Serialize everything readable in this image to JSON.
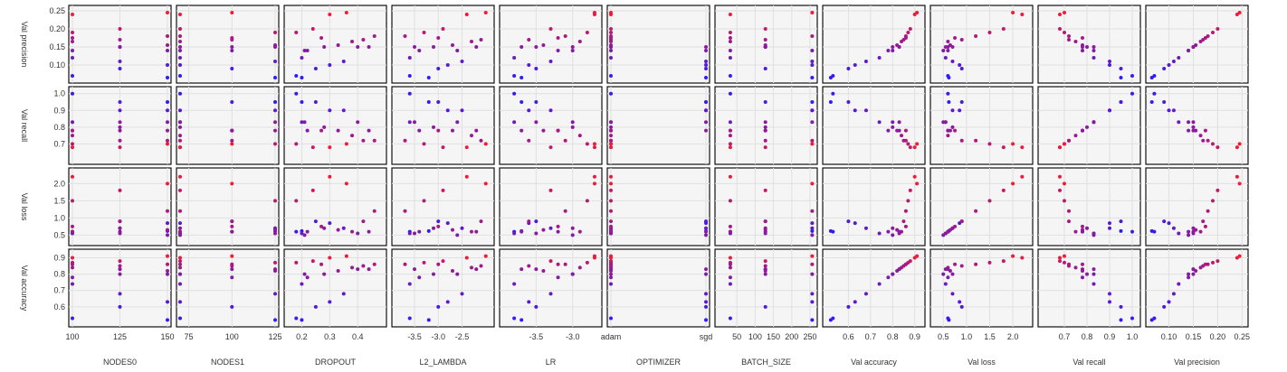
{
  "chart_data": {
    "type": "scatter",
    "title": "",
    "description_type": "scatter-matrix",
    "grid": true,
    "background": "#f5f5f5",
    "point_colors": {
      "low": "#2a1aff",
      "high": "#ff1a2a"
    },
    "columns": [
      {
        "key": "nodes0",
        "label": "NODES0",
        "ticks": [
          "100",
          "125",
          "150"
        ],
        "range": [
          100,
          150
        ]
      },
      {
        "key": "nodes1",
        "label": "NODES1",
        "ticks": [
          "75",
          "100",
          "125"
        ],
        "range": [
          70,
          125
        ]
      },
      {
        "key": "dropout",
        "label": "DROPOUT",
        "ticks": [
          "0.2",
          "0.3",
          "0.4"
        ],
        "range": [
          0.15,
          0.49
        ]
      },
      {
        "key": "l2",
        "label": "L2_LAMBDA",
        "ticks": [
          "-3.5",
          "-3.0",
          "-2.5"
        ],
        "range": [
          -3.9,
          -1.9
        ]
      },
      {
        "key": "lr",
        "label": "LR",
        "ticks": [
          "-3.5",
          "-3.0"
        ],
        "range": [
          -3.95,
          -2.65
        ]
      },
      {
        "key": "optimizer",
        "label": "OPTIMIZER",
        "ticks": [
          "adam",
          "sgd"
        ],
        "range": [
          0,
          1
        ]
      },
      {
        "key": "batch",
        "label": "BATCH_SIZE",
        "ticks": [
          "50",
          "100",
          "150",
          "200",
          "250"
        ],
        "range": [
          0,
          260
        ]
      },
      {
        "key": "acc",
        "label": "Val accuracy",
        "ticks": [
          "0.6",
          "0.7",
          "0.8",
          "0.9"
        ],
        "range": [
          0.5,
          0.93
        ]
      },
      {
        "key": "loss",
        "label": "Val loss",
        "ticks": [
          "0.5",
          "1.0",
          "1.5",
          "2.0"
        ],
        "range": [
          0.3,
          2.35
        ]
      },
      {
        "key": "recall",
        "label": "Val recall",
        "ticks": [
          "0.7",
          "0.8",
          "0.9",
          "1.0"
        ],
        "range": [
          0.6,
          1.02
        ]
      },
      {
        "key": "precision",
        "label": "Val precision",
        "ticks": [
          "0.10",
          "0.15",
          "0.20",
          "0.25"
        ],
        "range": [
          0.06,
          0.255
        ]
      }
    ],
    "rows": [
      {
        "key": "precision",
        "label": "Val precision",
        "ticks": [
          "0.10",
          "0.15",
          "0.20",
          "0.25"
        ],
        "range": [
          0.06,
          0.255
        ]
      },
      {
        "key": "recall",
        "label": "Val recall",
        "ticks": [
          "0.7",
          "0.8",
          "0.9",
          "1.0"
        ],
        "range": [
          0.6,
          1.02
        ]
      },
      {
        "key": "loss",
        "label": "Val loss",
        "ticks": [
          "0.5",
          "1.0",
          "1.5",
          "2.0"
        ],
        "range": [
          0.3,
          2.35
        ]
      },
      {
        "key": "acc",
        "label": "Val accuracy",
        "ticks": [
          "0.6",
          "0.7",
          "0.8",
          "0.9"
        ],
        "range": [
          0.5,
          0.93
        ]
      }
    ],
    "points": [
      {
        "nodes0": 100,
        "nodes1": 70,
        "dropout": 0.18,
        "l2": -3.6,
        "lr": -3.8,
        "optimizer": 0,
        "batch": 32,
        "acc": 0.53,
        "loss": 0.6,
        "recall": 1.0,
        "precision": 0.07
      },
      {
        "nodes0": 150,
        "nodes1": 125,
        "dropout": 0.2,
        "l2": -3.2,
        "lr": -3.7,
        "optimizer": 1,
        "batch": 256,
        "acc": 0.52,
        "loss": 0.62,
        "recall": 0.95,
        "precision": 0.065
      },
      {
        "nodes0": 125,
        "nodes1": 100,
        "dropout": 0.25,
        "l2": -3.0,
        "lr": -3.5,
        "optimizer": 1,
        "batch": 128,
        "acc": 0.6,
        "loss": 0.9,
        "recall": 0.95,
        "precision": 0.09
      },
      {
        "nodes0": 150,
        "nodes1": 70,
        "dropout": 0.3,
        "l2": -2.8,
        "lr": -3.6,
        "optimizer": 1,
        "batch": 256,
        "acc": 0.63,
        "loss": 0.85,
        "recall": 0.9,
        "precision": 0.1
      },
      {
        "nodes0": 125,
        "nodes1": 125,
        "dropout": 0.35,
        "l2": -2.5,
        "lr": -3.3,
        "optimizer": 1,
        "batch": 256,
        "acc": 0.68,
        "loss": 0.7,
        "recall": 0.9,
        "precision": 0.11
      },
      {
        "nodes0": 100,
        "nodes1": 70,
        "dropout": 0.2,
        "l2": -3.6,
        "lr": -3.8,
        "optimizer": 0,
        "batch": 32,
        "acc": 0.74,
        "loss": 0.55,
        "recall": 0.83,
        "precision": 0.12
      },
      {
        "nodes0": 100,
        "nodes1": 100,
        "dropout": 0.22,
        "l2": -3.4,
        "lr": -3.2,
        "optimizer": 0,
        "batch": 32,
        "acc": 0.78,
        "loss": 0.6,
        "recall": 0.78,
        "precision": 0.14
      },
      {
        "nodes0": 125,
        "nodes1": 70,
        "dropout": 0.28,
        "l2": -3.1,
        "lr": -3.0,
        "optimizer": 0,
        "batch": 128,
        "acc": 0.8,
        "loss": 0.7,
        "recall": 0.8,
        "precision": 0.15
      },
      {
        "nodes0": 150,
        "nodes1": 125,
        "dropout": 0.33,
        "l2": -2.7,
        "lr": -3.4,
        "optimizer": 0,
        "batch": 128,
        "acc": 0.82,
        "loss": 0.65,
        "recall": 0.78,
        "precision": 0.155
      },
      {
        "nodes0": 100,
        "nodes1": 70,
        "dropout": 0.38,
        "l2": -2.3,
        "lr": -2.9,
        "optimizer": 0,
        "batch": 32,
        "acc": 0.84,
        "loss": 0.6,
        "recall": 0.75,
        "precision": 0.165
      },
      {
        "nodes0": 125,
        "nodes1": 100,
        "dropout": 0.42,
        "l2": -2.1,
        "lr": -3.6,
        "optimizer": 0,
        "batch": 128,
        "acc": 0.85,
        "loss": 0.9,
        "recall": 0.72,
        "precision": 0.17
      },
      {
        "nodes0": 150,
        "nodes1": 70,
        "dropout": 0.46,
        "l2": -3.7,
        "lr": -3.1,
        "optimizer": 0,
        "batch": 256,
        "acc": 0.86,
        "loss": 1.2,
        "recall": 0.72,
        "precision": 0.18
      },
      {
        "nodes0": 100,
        "nodes1": 125,
        "dropout": 0.18,
        "l2": -3.3,
        "lr": -2.8,
        "optimizer": 0,
        "batch": 32,
        "acc": 0.87,
        "loss": 1.5,
        "recall": 0.7,
        "precision": 0.19
      },
      {
        "nodes0": 125,
        "nodes1": 70,
        "dropout": 0.24,
        "l2": -2.9,
        "lr": -3.3,
        "optimizer": 0,
        "batch": 128,
        "acc": 0.88,
        "loss": 1.8,
        "recall": 0.68,
        "precision": 0.2
      },
      {
        "nodes0": 100,
        "nodes1": 70,
        "dropout": 0.3,
        "l2": -2.4,
        "lr": -2.7,
        "optimizer": 0,
        "batch": 32,
        "acc": 0.9,
        "loss": 2.2,
        "recall": 0.68,
        "precision": 0.24
      },
      {
        "nodes0": 150,
        "nodes1": 100,
        "dropout": 0.36,
        "l2": -2.0,
        "lr": -2.7,
        "optimizer": 0,
        "batch": 256,
        "acc": 0.91,
        "loss": 2.0,
        "recall": 0.7,
        "precision": 0.245
      },
      {
        "nodes0": 125,
        "nodes1": 125,
        "dropout": 0.4,
        "l2": -3.5,
        "lr": -3.5,
        "optimizer": 0,
        "batch": 128,
        "acc": 0.83,
        "loss": 0.55,
        "recall": 0.83,
        "precision": 0.15
      },
      {
        "nodes0": 100,
        "nodes1": 100,
        "dropout": 0.27,
        "l2": -3.0,
        "lr": -3.2,
        "optimizer": 0,
        "batch": 32,
        "acc": 0.86,
        "loss": 0.75,
        "recall": 0.78,
        "precision": 0.175
      },
      {
        "nodes0": 150,
        "nodes1": 70,
        "dropout": 0.21,
        "l2": -2.6,
        "lr": -3.0,
        "optimizer": 1,
        "batch": 256,
        "acc": 0.8,
        "loss": 0.5,
        "recall": 0.83,
        "precision": 0.14
      },
      {
        "nodes0": 125,
        "nodes1": 100,
        "dropout": 0.44,
        "l2": -2.2,
        "lr": -3.7,
        "optimizer": 1,
        "batch": 128,
        "acc": 0.83,
        "loss": 0.6,
        "recall": 0.78,
        "precision": 0.15
      }
    ]
  }
}
